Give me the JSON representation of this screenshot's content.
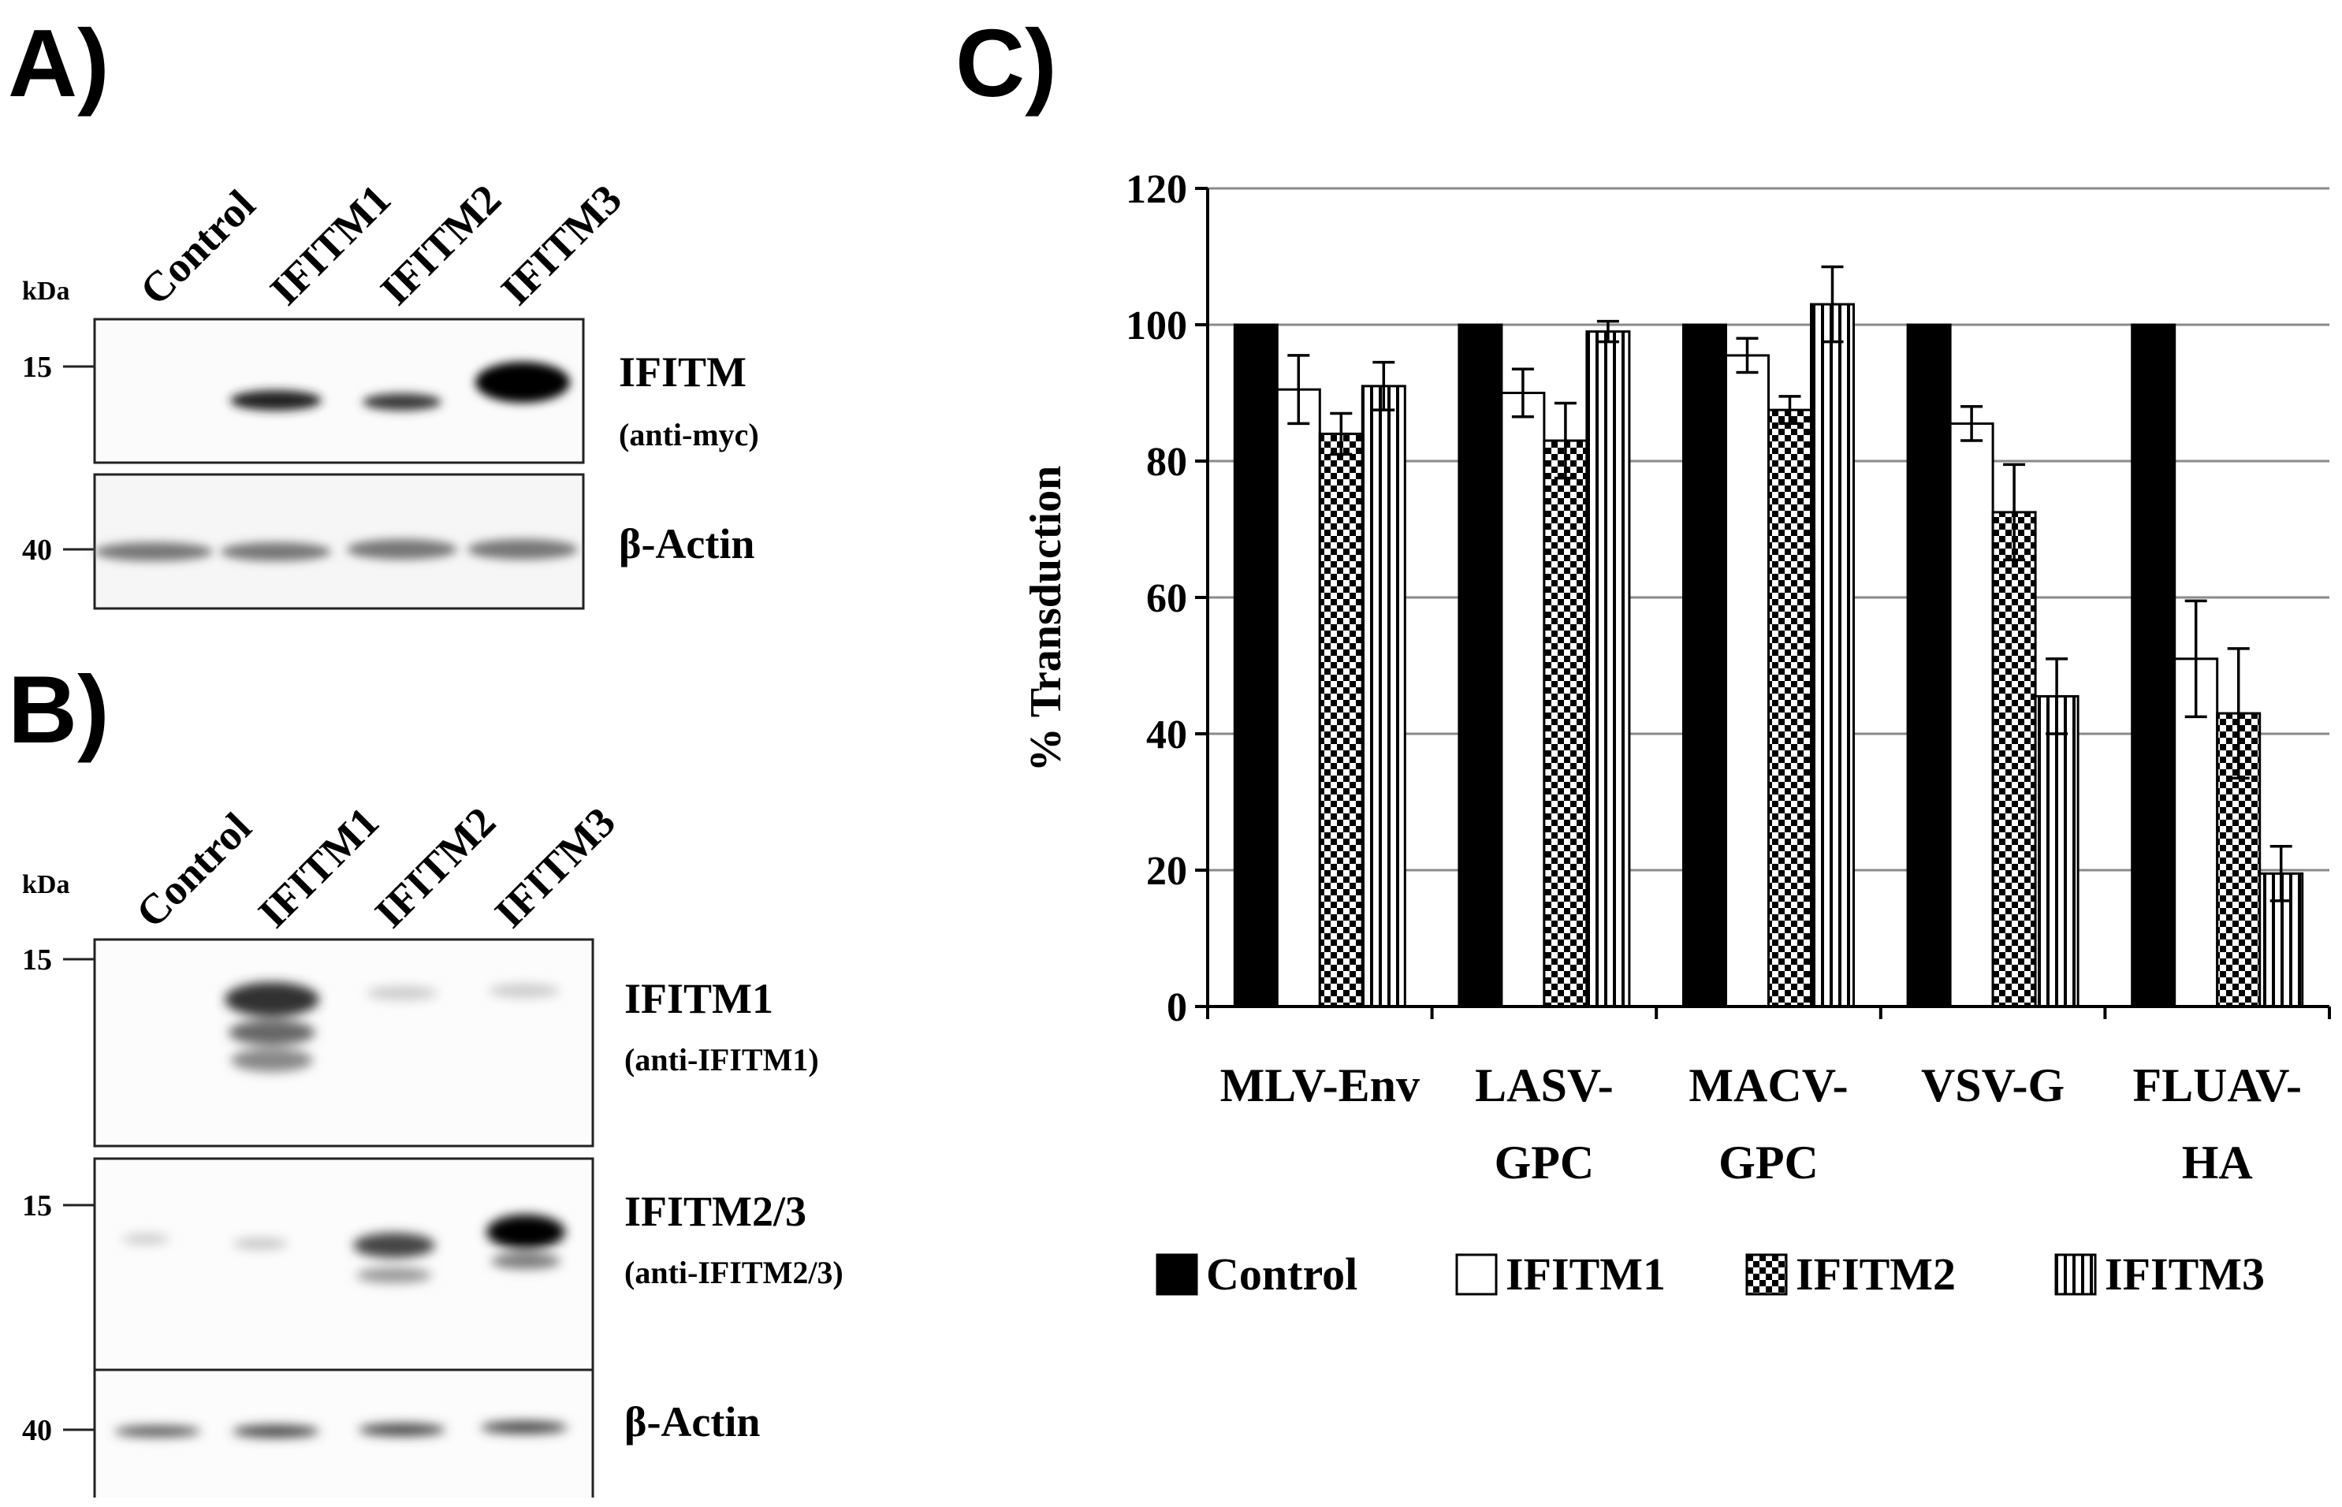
{
  "panelA": {
    "letter": "A)",
    "lanes": [
      "Control",
      "IFITM1",
      "IFITM2",
      "IFITM3"
    ],
    "kda_label": "kDa",
    "blots": [
      {
        "marker": "15",
        "protein": "IFITM",
        "antibody": "(anti-myc)"
      },
      {
        "marker": "40",
        "protein": "β-Actin",
        "antibody": ""
      }
    ]
  },
  "panelB": {
    "letter": "B)",
    "lanes": [
      "Control",
      "IFITM1",
      "IFITM2",
      "IFITM3"
    ],
    "kda_label": "kDa",
    "blots": [
      {
        "marker": "15",
        "protein": "IFITM1",
        "antibody": "(anti-IFITM1)"
      },
      {
        "marker": "15",
        "protein": "IFITM2/3",
        "antibody": "(anti-IFITM2/3)"
      },
      {
        "marker": "40",
        "protein": "β-Actin",
        "antibody": ""
      }
    ]
  },
  "panelC": {
    "letter": "C)"
  },
  "chart_data": {
    "type": "bar",
    "ylabel": "% Transduction",
    "ylim": [
      0,
      120
    ],
    "yticks": [
      "0",
      "20",
      "40",
      "60",
      "80",
      "100",
      "120"
    ],
    "categories": [
      [
        "MLV-Env"
      ],
      [
        "LASV-",
        "GPC"
      ],
      [
        "MACV-",
        "GPC"
      ],
      [
        "VSV-G"
      ],
      [
        "FLUAV-",
        "HA"
      ]
    ],
    "grid": true,
    "legend_position": "bottom",
    "series": [
      {
        "name": "Control",
        "pattern": "solid",
        "color": "#000000",
        "values": [
          100,
          100,
          100,
          100,
          100
        ],
        "errors": [
          0,
          0,
          0,
          0,
          0
        ]
      },
      {
        "name": "IFITM1",
        "pattern": "open",
        "color": "#ffffff",
        "values": [
          90.5,
          90,
          95.5,
          85.5,
          51
        ],
        "errors": [
          5,
          3.5,
          2.5,
          2.5,
          8.5
        ]
      },
      {
        "name": "IFITM2",
        "pattern": "checker",
        "color": "#000000",
        "values": [
          84,
          83,
          87.5,
          72.5,
          43
        ],
        "errors": [
          3,
          5.5,
          2,
          7,
          9.5
        ]
      },
      {
        "name": "IFITM3",
        "pattern": "vstripes",
        "color": "#000000",
        "values": [
          91,
          99,
          103,
          45.5,
          19.5
        ],
        "errors": [
          3.5,
          1.5,
          5.5,
          5.5,
          4
        ]
      }
    ]
  }
}
